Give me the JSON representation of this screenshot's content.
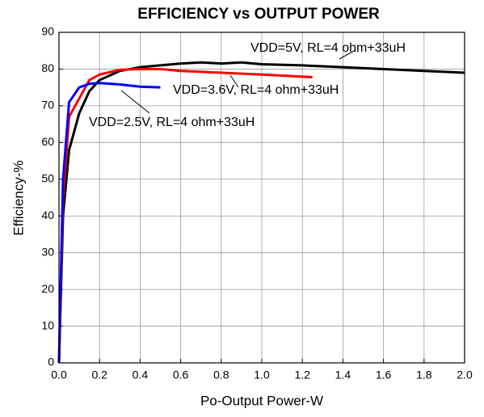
{
  "chart_data": {
    "type": "line",
    "title": "EFFICIENCY vs OUTPUT POWER",
    "xlabel": "Po-Output Power-W",
    "ylabel": "Efficiency-%",
    "xlim": [
      0,
      2
    ],
    "ylim": [
      0,
      90
    ],
    "xticks": [
      {
        "value": 0,
        "label": "0.0"
      },
      0.2,
      0.4,
      0.6,
      0.8,
      {
        "value": 1,
        "label": "1.0"
      },
      1.2,
      1.4,
      1.6,
      1.8,
      {
        "value": 2,
        "label": "2.0"
      }
    ],
    "yticks": [
      0,
      10,
      20,
      30,
      40,
      50,
      60,
      70,
      80,
      90
    ],
    "grid": true,
    "series": [
      {
        "name": "VDD=5V, RL=4 ohm+33uH",
        "color": "#000000",
        "x": [
          0,
          0.02,
          0.05,
          0.1,
          0.15,
          0.2,
          0.3,
          0.4,
          0.5,
          0.6,
          0.7,
          0.8,
          0.9,
          1.0,
          1.2,
          1.4,
          1.6,
          1.8,
          2.0
        ],
        "values": [
          0,
          40,
          58,
          68,
          74,
          77,
          79.5,
          80.5,
          81,
          81.5,
          81.8,
          81.5,
          81.8,
          81.3,
          81,
          80.5,
          80,
          79.5,
          79
        ]
      },
      {
        "name": "VDD=3.6V, RL=4 ohm+33uH",
        "color": "#ff0000",
        "x": [
          0,
          0.02,
          0.05,
          0.1,
          0.15,
          0.2,
          0.3,
          0.4,
          0.5,
          0.6,
          0.8,
          1.0,
          1.25
        ],
        "values": [
          0,
          45,
          67,
          72,
          77,
          78.5,
          79.8,
          80,
          80,
          79.5,
          79,
          78.5,
          77.8
        ]
      },
      {
        "name": "VDD=2.5V, RL=4 ohm+33uH",
        "color": "#0000ff",
        "x": [
          0,
          0.02,
          0.05,
          0.1,
          0.15,
          0.2,
          0.3,
          0.4,
          0.5
        ],
        "values": [
          0,
          50,
          71,
          75,
          76,
          76.2,
          75.8,
          75.2,
          75
        ]
      }
    ]
  }
}
